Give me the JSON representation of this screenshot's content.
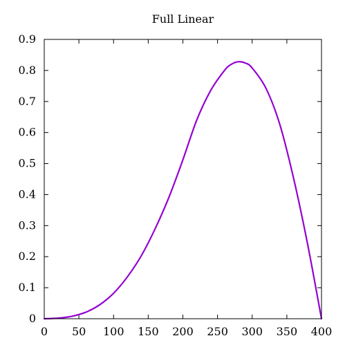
{
  "chart_data": {
    "type": "line",
    "title": "Full Linear",
    "xlabel": "",
    "ylabel": "",
    "xlim": [
      0,
      400
    ],
    "ylim": [
      0,
      0.9
    ],
    "x_ticks": [
      0,
      50,
      100,
      150,
      200,
      250,
      300,
      350,
      400
    ],
    "y_ticks": [
      0,
      0.1,
      0.2,
      0.3,
      0.4,
      0.5,
      0.6,
      0.7,
      0.8,
      0.9
    ],
    "x_tick_labels": [
      "0",
      "50",
      "100",
      "150",
      "200",
      "250",
      "300",
      "350",
      "400"
    ],
    "y_tick_labels": [
      "0",
      "0.1",
      "0.2",
      "0.3",
      "0.4",
      "0.5",
      "0.6",
      "0.7",
      "0.8",
      "0.9"
    ],
    "grid": false,
    "legend": "none",
    "series": [
      {
        "color": "#9400d3",
        "x": [
          0,
          20,
          40,
          60,
          80,
          100,
          120,
          140,
          160,
          180,
          200,
          220,
          240,
          260,
          270,
          280,
          290,
          300,
          320,
          340,
          360,
          380,
          400
        ],
        "y": [
          0,
          0.002,
          0.008,
          0.021,
          0.045,
          0.082,
          0.135,
          0.203,
          0.29,
          0.392,
          0.512,
          0.64,
          0.735,
          0.8,
          0.82,
          0.828,
          0.824,
          0.808,
          0.742,
          0.625,
          0.45,
          0.24,
          0
        ]
      }
    ]
  }
}
